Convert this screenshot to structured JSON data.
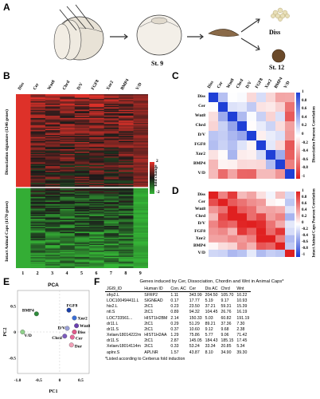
{
  "panel_labels": {
    "a": "A",
    "b": "B",
    "c": "C",
    "d": "D",
    "e": "E",
    "f": "F"
  },
  "panel_a": {
    "stage_9": "St. 9",
    "stage_12": "St. 12",
    "diss_label": "Diss"
  },
  "panel_b": {
    "columns": [
      "Diss",
      "Cer",
      "Wnt8",
      "Chrd",
      "D/V",
      "FGF8",
      "Xnr2",
      "BMP4",
      "V/D"
    ],
    "column_numbers": [
      "1",
      "2",
      "3",
      "4",
      "5",
      "6",
      "7",
      "8",
      "9"
    ],
    "upper_label": "Dissociation signature (1246 genes)",
    "lower_label": "Intact Animal Caps (1170 genes)",
    "legend_title": "fold change",
    "legend_ticks": [
      "2",
      "-2"
    ],
    "colors": {
      "red": "#e8322a",
      "green": "#35b536",
      "black": "#1a1a1a"
    }
  },
  "panel_c": {
    "labels": [
      "Diss",
      "Cer",
      "Wnt8",
      "Chrd",
      "D/V",
      "FGF8",
      "Xnr2",
      "BMP4",
      "V/D"
    ],
    "colorbar_label": "Dissociation Pearson Correlation",
    "ticks": [
      "1",
      "0.8",
      "0.6",
      "0.4",
      "0.2",
      "0",
      "-0.2",
      "-0.4",
      "-0.6",
      "-0.8",
      "-1"
    ]
  },
  "panel_d": {
    "labels": [
      "Diss",
      "Cer",
      "Wnt8",
      "Chrd",
      "D/V",
      "FGF8",
      "Xnr2",
      "BMP4",
      "V/D"
    ],
    "colorbar_label": "Intact Animal Caps Pearson Correlation",
    "ticks": [
      "1",
      "0.8",
      "0.6",
      "0.4",
      "0.2",
      "0",
      "-0.2",
      "-0.4",
      "-0.6",
      "-0.8",
      "-1"
    ]
  },
  "chart_data": {
    "type": "scatter",
    "title": "PCA",
    "xlabel": "PC1",
    "ylabel": "PC2",
    "xticks": [
      "-1.0",
      "-0.5",
      "0",
      "0.5"
    ],
    "yticks": [
      "0.5",
      "0",
      "-0.5"
    ],
    "xlim": [
      -1.0,
      0.7
    ],
    "ylim": [
      -0.8,
      0.8
    ],
    "points": [
      {
        "label": "BMP4",
        "x": -0.55,
        "y": 0.35,
        "color": "#2e8b3a"
      },
      {
        "label": "FGF8",
        "x": 0.22,
        "y": 0.42,
        "color": "#1a3fa8"
      },
      {
        "label": "Xnr2",
        "x": 0.35,
        "y": 0.27,
        "color": "#3b6fd6"
      },
      {
        "label": "Wnt8",
        "x": 0.4,
        "y": 0.12,
        "color": "#6a3fb0"
      },
      {
        "label": "V/D",
        "x": -0.88,
        "y": 0.0,
        "color": "#8fd18a"
      },
      {
        "label": "D/V",
        "x": 0.18,
        "y": 0.07,
        "color": "#9aa0d8"
      },
      {
        "label": "Diss",
        "x": 0.35,
        "y": 0.0,
        "color": "#e05a8a"
      },
      {
        "label": "Chrd",
        "x": 0.12,
        "y": -0.08,
        "color": "#7c5bbd"
      },
      {
        "label": "Cer",
        "x": 0.3,
        "y": -0.1,
        "color": "#e86a9a"
      },
      {
        "label": "Dor",
        "x": 0.28,
        "y": -0.25,
        "color": "#f2a0b8"
      }
    ]
  },
  "panel_f": {
    "title": "Genes induced by Cer, Dissociation, Chordin and Wnt in Animal Caps*",
    "headers": [
      "JGI9_ID",
      "Human ID",
      "Con. AC",
      "Cer",
      "Dis AC",
      "Chrd",
      "Wnt"
    ],
    "rows": [
      [
        "sfrp2.L",
        "SFRP2",
        "1.11",
        "343.99",
        "204.50",
        "105.70",
        "10.22"
      ],
      [
        "LOC100494411.L",
        "SIGNEAD",
        "0.17",
        "17.77",
        "5.19",
        "9.17",
        "10.93"
      ],
      [
        "his2.L",
        "2tC1",
        "0.23",
        "23.50",
        "37.21",
        "59.31",
        "15.39"
      ],
      [
        "ntl.S",
        "2tC1",
        "0.89",
        "94.32",
        "104.45",
        "26.76",
        "16.19"
      ],
      [
        "LOC733561...",
        "HIST1H2BM",
        "2.14",
        "150.33",
        "5.03",
        "60.82",
        "191.19"
      ],
      [
        "dr11.L",
        "2tC1",
        "0.29",
        "51.29",
        "89.21",
        "37.36",
        "7.30"
      ],
      [
        "dr11.S",
        "2tC1",
        "0.37",
        "10.60",
        "9.12",
        "9.68",
        "2.38"
      ],
      [
        "Xelaev18014222m",
        "HIST1H2AA",
        "1.29",
        "75.86",
        "5.77",
        "9.06",
        "71.42"
      ],
      [
        "dr11.S",
        "2tC1",
        "2.87",
        "145.05",
        "184.43",
        "185.15",
        "17.45"
      ],
      [
        "Xelaev18014114m",
        "2tC1",
        "0.33",
        "53.24",
        "33.34",
        "20.85",
        "5.34"
      ],
      [
        "aplnr.S",
        "APLNR",
        "1.57",
        "43.87",
        "8.10",
        "34.90",
        "39.30"
      ]
    ],
    "footnote": "*Listed according to Cerberus fold induction"
  }
}
